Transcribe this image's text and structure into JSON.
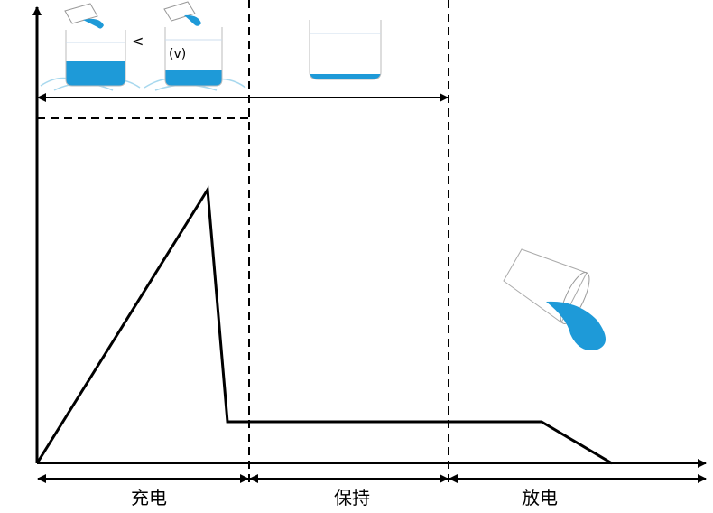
{
  "phases": [
    {
      "label": "充电"
    },
    {
      "label": "保持"
    },
    {
      "label": "放电"
    }
  ],
  "beaker_annotation": "(v)",
  "arrow_annotation": "<",
  "colors": {
    "water": "#1e9ad8",
    "line": "#000000",
    "beaker": "#bbbbbb",
    "ripple": "#a8d8ee"
  }
}
